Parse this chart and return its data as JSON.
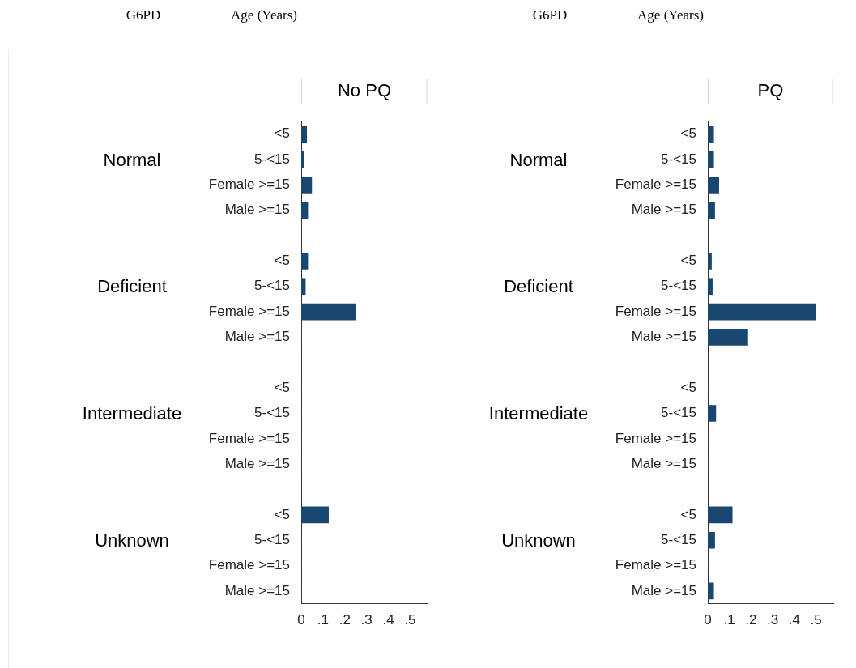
{
  "chart_data": [
    {
      "type": "bar",
      "orientation": "horizontal",
      "title": "No PQ",
      "ylabel": "Age (Years)",
      "categories": [
        "<5",
        "5-<15",
        "Female >=15",
        "Male >=15",
        null,
        "<5",
        "5-<15",
        "Female >=15",
        "Male >=15",
        null,
        "<5",
        "5-<15",
        "Female >=15",
        "Male >=15",
        null,
        "<5",
        "5-<15",
        "Female >=15",
        "Male >=15"
      ],
      "values": [
        0.025,
        0.01,
        0.048,
        0.03,
        null,
        0.03,
        0.019,
        0.25,
        0,
        null,
        0,
        0,
        0,
        0,
        null,
        0.125,
        0,
        0,
        0
      ],
      "color": "#1a476f",
      "xlim": [
        0,
        0.58
      ],
      "xticks": [
        0,
        {
          "value": 0.1,
          "label": ".1"
        },
        {
          "value": 0.2,
          "label": ".2"
        },
        {
          "value": 0.3,
          "label": ".3"
        },
        {
          "value": 0.4,
          "label": ".4"
        },
        {
          "value": 0.5,
          "label": ".5"
        }
      ],
      "annotations": [
        "G6PD",
        "Normal",
        "Deficient",
        "Intermediate",
        "Unknown"
      ],
      "grid": false,
      "legend": false
    },
    {
      "type": "bar",
      "orientation": "horizontal",
      "title": "PQ",
      "ylabel": "Age (Years)",
      "categories": [
        "<5",
        "5-<15",
        "Female >=15",
        "Male >=15",
        null,
        "<5",
        "5-<15",
        "Female >=15",
        "Male >=15",
        null,
        "<5",
        "5-<15",
        "Female >=15",
        "Male >=15",
        null,
        "<5",
        "5-<15",
        "Female >=15",
        "Male >=15"
      ],
      "values": [
        0.027,
        0.027,
        0.051,
        0.032,
        null,
        0.017,
        0.021,
        0.5,
        0.185,
        null,
        0,
        0.037,
        0,
        0,
        null,
        0.113,
        0.032,
        0,
        0.027
      ],
      "color": "#1a476f",
      "xlim": [
        0,
        0.58
      ],
      "xticks": [
        0,
        {
          "value": 0.1,
          "label": ".1"
        },
        {
          "value": 0.2,
          "label": ".2"
        },
        {
          "value": 0.3,
          "label": ".3"
        },
        {
          "value": 0.4,
          "label": ".4"
        },
        {
          "value": 0.5,
          "label": ".5"
        }
      ],
      "annotations": [
        "G6PD",
        "Normal",
        "Deficient",
        "Intermediate",
        "Unknown"
      ],
      "grid": false,
      "legend": false
    }
  ]
}
